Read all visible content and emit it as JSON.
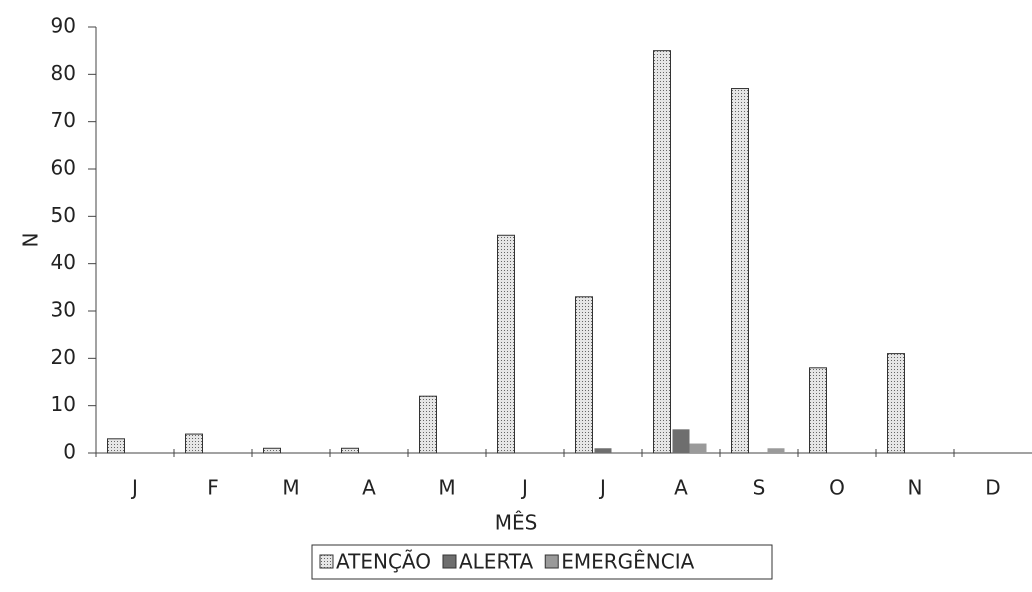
{
  "chart_data": {
    "type": "bar",
    "categories": [
      "J",
      "F",
      "M",
      "A",
      "M",
      "J",
      "J",
      "A",
      "S",
      "O",
      "N",
      "D"
    ],
    "series": [
      {
        "name": "ATENÇÃO",
        "color": "#d4d4d4",
        "values": [
          3,
          4,
          1,
          1,
          12,
          46,
          33,
          85,
          77,
          18,
          21,
          0
        ]
      },
      {
        "name": "ALERTA",
        "color": "#6e6e6e",
        "values": [
          0,
          0,
          0,
          0,
          0,
          0,
          1,
          5,
          0,
          0,
          0,
          0
        ]
      },
      {
        "name": "EMERGÊNCIA",
        "color": "#9a9a9a",
        "values": [
          0,
          0,
          0,
          0,
          0,
          0,
          0,
          2,
          1,
          0,
          0,
          0
        ]
      }
    ],
    "x_label": "MÊS",
    "y_label": "N",
    "ylim": [
      0,
      90
    ],
    "yticks": [
      0,
      10,
      20,
      30,
      40,
      50,
      60,
      70,
      80,
      90
    ],
    "grid": false,
    "legend": "bottom"
  }
}
